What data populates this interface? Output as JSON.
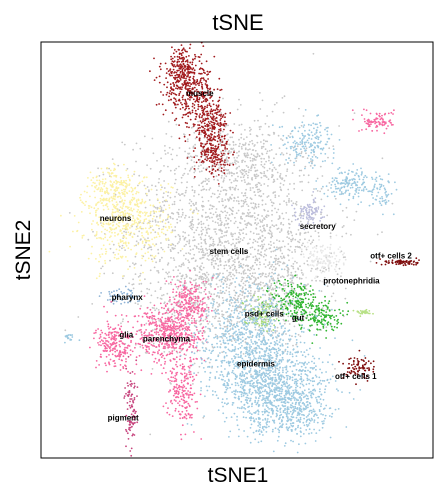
{
  "chart_data": {
    "type": "scatter",
    "title": "tSNE",
    "xlabel": "tSNE1",
    "ylabel": "tSNE2",
    "xlim": [
      0,
      100
    ],
    "ylim": [
      0,
      100
    ],
    "grid": false,
    "ticks": false,
    "legend": "none",
    "clusters": [
      {
        "label": "stem cells",
        "color": "#c8c8c8",
        "cx": 46,
        "cy": 49,
        "points": 2600,
        "blobs": [
          {
            "cx": 48,
            "cy": 56,
            "sx": 13,
            "sy": 12,
            "w": 0.58
          },
          {
            "cx": 46,
            "cy": 39,
            "sx": 11,
            "sy": 8,
            "w": 0.24
          },
          {
            "cx": 51,
            "cy": 72,
            "sx": 8,
            "sy": 5,
            "w": 0.1
          },
          {
            "cx": 62,
            "cy": 42,
            "sx": 6,
            "sy": 6,
            "w": 0.08
          }
        ]
      },
      {
        "label": "muscle",
        "color": "#a11a1d",
        "cx": 40,
        "cy": 86,
        "points": 900,
        "blobs": [
          {
            "cx": 36,
            "cy": 94,
            "sx": 2.6,
            "sy": 2.6,
            "w": 0.2
          },
          {
            "cx": 38,
            "cy": 88,
            "sx": 3.4,
            "sy": 3.0,
            "w": 0.35
          },
          {
            "cx": 43,
            "cy": 80,
            "sx": 2.3,
            "sy": 3.4,
            "w": 0.3
          },
          {
            "cx": 44,
            "cy": 73,
            "sx": 2.0,
            "sy": 2.2,
            "w": 0.15
          }
        ]
      },
      {
        "label": "neurons",
        "color": "#fcf1a4",
        "cx": 24,
        "cy": 57,
        "points": 650,
        "blobs": [
          {
            "cx": 22,
            "cy": 57,
            "sx": 5.5,
            "sy": 5.0,
            "w": 0.8
          },
          {
            "cx": 18,
            "cy": 65,
            "sx": 3,
            "sy": 2.5,
            "w": 0.2
          }
        ]
      },
      {
        "label": "secretory",
        "color": "#9ecae1",
        "cx": 72,
        "cy": 66,
        "points": 380,
        "blobs": [
          {
            "cx": 68,
            "cy": 76,
            "sx": 3.5,
            "sy": 2.5,
            "w": 0.45
          },
          {
            "cx": 79,
            "cy": 66,
            "sx": 3.0,
            "sy": 1.8,
            "w": 0.4
          },
          {
            "cx": 87,
            "cy": 64,
            "sx": 1.5,
            "sy": 2.0,
            "w": 0.15
          }
        ]
      },
      {
        "label": "secretory-lavender",
        "color": "#bcbddc",
        "cx": 67,
        "cy": 58,
        "points": 90,
        "blobs": [
          {
            "cx": 68,
            "cy": 59,
            "sx": 2.0,
            "sy": 1.5,
            "w": 1.0
          }
        ]
      },
      {
        "label": "protonephridia",
        "color": "#e7e7e7",
        "cx": 72,
        "cy": 48,
        "points": 120,
        "blobs": [
          {
            "cx": 72,
            "cy": 48,
            "sx": 2.5,
            "sy": 2.0,
            "w": 1.0
          }
        ]
      },
      {
        "label": "otf+ cells 2",
        "color": "#7f0d0d",
        "cx": 92,
        "cy": 47,
        "points": 70,
        "blobs": [
          {
            "cx": 92,
            "cy": 47,
            "sx": 2.2,
            "sy": 0.4,
            "w": 1.0
          }
        ]
      },
      {
        "label": "top-right pink",
        "color": "#f768a1",
        "cx": 86,
        "cy": 81,
        "points": 90,
        "blobs": [
          {
            "cx": 86,
            "cy": 81,
            "sx": 2.0,
            "sy": 1.2,
            "w": 1.0
          }
        ]
      },
      {
        "label": "gut",
        "color": "#31b531",
        "cx": 67,
        "cy": 36,
        "points": 330,
        "blobs": [
          {
            "cx": 65,
            "cy": 38,
            "sx": 3.0,
            "sy": 2.6,
            "w": 0.55
          },
          {
            "cx": 71,
            "cy": 34,
            "sx": 2.6,
            "sy": 1.8,
            "w": 0.45
          }
        ]
      },
      {
        "label": "psd+ cells",
        "color": "#a4d977",
        "cx": 57,
        "cy": 35,
        "points": 110,
        "blobs": [
          {
            "cx": 56,
            "cy": 35,
            "sx": 2.2,
            "sy": 2.0,
            "w": 1.0
          }
        ]
      },
      {
        "label": "green-right",
        "color": "#b8e186",
        "cx": 82,
        "cy": 34,
        "points": 30,
        "blobs": [
          {
            "cx": 82.5,
            "cy": 35,
            "sx": 1.4,
            "sy": 0.3,
            "w": 1.0
          }
        ]
      },
      {
        "label": "pharynx",
        "color": "#8fb3d6",
        "cx": 20,
        "cy": 38,
        "points": 60,
        "blobs": [
          {
            "cx": 20,
            "cy": 39,
            "sx": 2.2,
            "sy": 1.0,
            "w": 1.0
          }
        ]
      },
      {
        "label": "far-left blue",
        "color": "#9ecae1",
        "cx": 7,
        "cy": 29,
        "points": 20,
        "blobs": [
          {
            "cx": 7,
            "cy": 29,
            "sx": 1.3,
            "sy": 0.4,
            "w": 1.0
          }
        ]
      },
      {
        "label": "parenchyma",
        "color": "#f768a1",
        "cx": 33,
        "cy": 30,
        "points": 700,
        "blobs": [
          {
            "cx": 33,
            "cy": 30,
            "sx": 4.5,
            "sy": 3.5,
            "w": 0.75
          },
          {
            "cx": 38,
            "cy": 38,
            "sx": 2.5,
            "sy": 2.5,
            "w": 0.25
          }
        ]
      },
      {
        "label": "glia",
        "color": "#f768a1",
        "cx": 20,
        "cy": 27,
        "points": 220,
        "blobs": [
          {
            "cx": 19,
            "cy": 27,
            "sx": 2.5,
            "sy": 2.8,
            "w": 1.0
          }
        ]
      },
      {
        "label": "pink-lower",
        "color": "#f768a1",
        "cx": 36,
        "cy": 14,
        "points": 200,
        "blobs": [
          {
            "cx": 36,
            "cy": 16,
            "sx": 1.8,
            "sy": 4.0,
            "w": 1.0
          }
        ]
      },
      {
        "label": "pigment",
        "color": "#c7457e",
        "cx": 23,
        "cy": 12,
        "points": 90,
        "blobs": [
          {
            "cx": 23,
            "cy": 11,
            "sx": 0.8,
            "sy": 4.5,
            "w": 1.0
          }
        ]
      },
      {
        "label": "epidermis",
        "color": "#9ecae1",
        "cx": 57,
        "cy": 20,
        "points": 1900,
        "blobs": [
          {
            "cx": 54,
            "cy": 28,
            "sx": 6.5,
            "sy": 7.0,
            "w": 0.45
          },
          {
            "cx": 60,
            "cy": 16,
            "sx": 7.0,
            "sy": 5.0,
            "w": 0.45
          },
          {
            "cx": 65,
            "cy": 10,
            "sx": 5.0,
            "sy": 2.5,
            "w": 0.1
          }
        ]
      },
      {
        "label": "otf+ cells 1",
        "color": "#7f0d0d",
        "cx": 81,
        "cy": 22,
        "points": 80,
        "blobs": [
          {
            "cx": 81,
            "cy": 22,
            "sx": 2.0,
            "sy": 1.4,
            "w": 1.0
          }
        ]
      }
    ],
    "labels": [
      {
        "text": "muscle",
        "x": 37,
        "y": 87
      },
      {
        "text": "neurons",
        "x": 15,
        "y": 57
      },
      {
        "text": "secretory",
        "x": 66,
        "y": 55
      },
      {
        "text": "stem cells",
        "x": 43,
        "y": 49
      },
      {
        "text": "otf+ cells 2",
        "x": 84,
        "y": 48
      },
      {
        "text": "protonephridia",
        "x": 72,
        "y": 42
      },
      {
        "text": "pharynx",
        "x": 18,
        "y": 38
      },
      {
        "text": "psd+ cells",
        "x": 52,
        "y": 34
      },
      {
        "text": "gut",
        "x": 64,
        "y": 33
      },
      {
        "text": "glia",
        "x": 20,
        "y": 29
      },
      {
        "text": "parenchyma",
        "x": 26,
        "y": 28
      },
      {
        "text": "epidermis",
        "x": 50,
        "y": 22
      },
      {
        "text": "otf+ cells 1",
        "x": 75,
        "y": 19
      },
      {
        "text": "pigment",
        "x": 17,
        "y": 9
      }
    ]
  }
}
